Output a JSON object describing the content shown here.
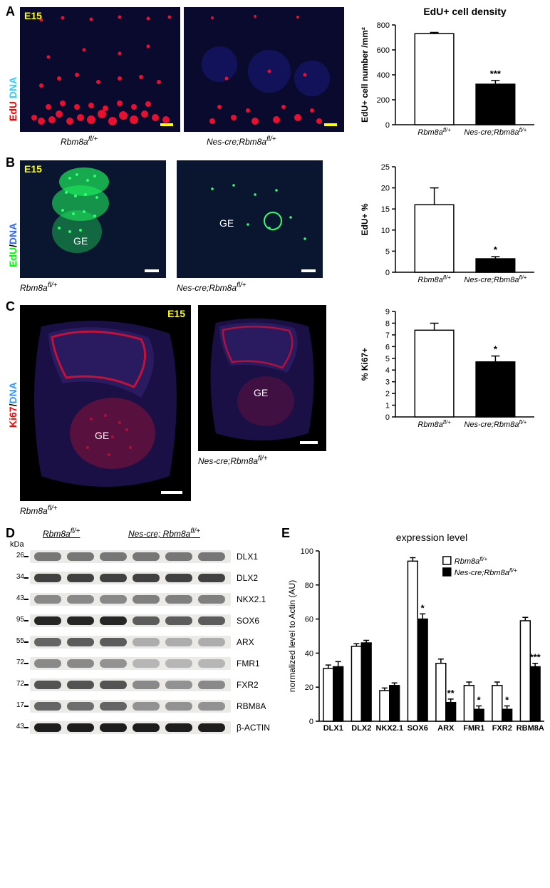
{
  "panelA": {
    "label": "A",
    "stage": "E15",
    "axisStain": {
      "red": "EdU",
      "blue": "DNA",
      "redColor": "#ff0000",
      "blueColor": "#33ccff"
    },
    "img1": {
      "genotype": "Rbm8a^{fl/+}",
      "bg": "#0a0a28",
      "scaleColor": "#ffff00"
    },
    "img2": {
      "genotype": "Nes-cre;Rbm8a^{fl/+}",
      "bg": "#0a0a28",
      "scaleColor": "#ffff00"
    },
    "chart": {
      "title": "EdU+ cell density",
      "ylabel": "EdU+ cell number /mm²",
      "ylim": [
        0,
        800
      ],
      "ytick_step": 200,
      "bars": [
        {
          "label": "Rbm8a^{fl/+}",
          "val": 730,
          "err": 10,
          "color": "#ffffff"
        },
        {
          "label": "Nes-cre;Rbm8a^{fl/+}",
          "val": 325,
          "err": 30,
          "color": "#000000",
          "sig": "***"
        }
      ]
    }
  },
  "panelB": {
    "label": "B",
    "stage": "E15",
    "axisStain": {
      "green": "EdU",
      "blue": "DNA",
      "greenColor": "#00ff00",
      "blueColor": "#3366ff"
    },
    "geLabel": "GE",
    "img1": {
      "genotype": "Rbm8a^{fl/+}",
      "scaleColor": "#ffffff"
    },
    "img2": {
      "genotype": "Nes-cre;Rbm8a^{fl/+}",
      "scaleColor": "#ffffff"
    },
    "chart": {
      "ylabel": "EdU+ %",
      "ylim": [
        0,
        25
      ],
      "ytick_step": 5,
      "bars": [
        {
          "label": "Rbm8a^{fl/+}",
          "val": 16,
          "err": 4,
          "color": "#ffffff"
        },
        {
          "label": "Nes-cre;Rbm8a^{fl/+}",
          "val": 3.2,
          "err": 0.5,
          "color": "#000000",
          "sig": "*"
        }
      ]
    }
  },
  "panelC": {
    "label": "C",
    "stage": "E15",
    "axisStain": {
      "red": "Ki67",
      "blue": "DNA",
      "redColor": "#ff0000",
      "blueColor": "#3399ff"
    },
    "geLabel": "GE",
    "img1": {
      "genotype": "Rbm8a^{fl/+}",
      "scaleColor": "#ffffff"
    },
    "img2": {
      "genotype": "Nes-cre;Rbm8a^{fl/+}",
      "scaleColor": "#ffffff"
    },
    "chart": {
      "ylabel": "% Ki67+",
      "ylim": [
        0,
        9
      ],
      "ytick_step": 1,
      "bars": [
        {
          "label": "Rbm8a^{fl/+}",
          "val": 7.4,
          "err": 0.6,
          "color": "#ffffff"
        },
        {
          "label": "Nes-cre;Rbm8a^{fl/+}",
          "val": 4.7,
          "err": 0.5,
          "color": "#000000",
          "sig": "*"
        }
      ]
    }
  },
  "panelD": {
    "label": "D",
    "kdaLabel": "kDa",
    "group1": "Rbm8a^{fl/+}",
    "group2": "Nes-cre; Rbm8a^{fl/+}",
    "rows": [
      {
        "kda": "26",
        "name": "DLX1",
        "int": [
          0.45,
          0.45,
          0.45,
          0.45,
          0.45,
          0.45
        ]
      },
      {
        "kda": "34",
        "name": "DLX2",
        "int": [
          0.75,
          0.75,
          0.75,
          0.75,
          0.75,
          0.75
        ]
      },
      {
        "kda": "43",
        "name": "NKX2.1",
        "int": [
          0.35,
          0.35,
          0.35,
          0.4,
          0.4,
          0.4
        ]
      },
      {
        "kda": "95",
        "name": "SOX6",
        "int": [
          0.9,
          0.9,
          0.9,
          0.6,
          0.6,
          0.6
        ]
      },
      {
        "kda": "55",
        "name": "ARX",
        "int": [
          0.55,
          0.6,
          0.6,
          0.15,
          0.15,
          0.15
        ]
      },
      {
        "kda": "72",
        "name": "FMR1",
        "int": [
          0.35,
          0.35,
          0.3,
          0.1,
          0.1,
          0.1
        ]
      },
      {
        "kda": "72",
        "name": "FXR2",
        "int": [
          0.65,
          0.65,
          0.65,
          0.35,
          0.3,
          0.35
        ]
      },
      {
        "kda": "17",
        "name": "RBM8A",
        "int": [
          0.55,
          0.5,
          0.55,
          0.3,
          0.3,
          0.3
        ]
      },
      {
        "kda": "43",
        "name": "β-ACTIN",
        "int": [
          0.95,
          0.95,
          0.95,
          0.95,
          0.95,
          0.95
        ]
      }
    ]
  },
  "panelE": {
    "label": "E",
    "title": "expression level",
    "ylabel": "normalized level to Actin (AU)",
    "legend": [
      {
        "label": "Rbm8a^{fl/+}",
        "fill": "#ffffff"
      },
      {
        "label": "Nes-cre;Rbm8a^{fl/+}",
        "fill": "#000000"
      }
    ],
    "ylim": [
      0,
      100
    ],
    "ytick_step": 20,
    "categories": [
      "DLX1",
      "DLX2",
      "NKX2.1",
      "SOX6",
      "ARX",
      "FMR1",
      "FXR2",
      "RBM8A"
    ],
    "series": [
      {
        "name": "Rbm8a^{fl/+}",
        "fill": "#ffffff",
        "vals": [
          31,
          44,
          18,
          94,
          34,
          21,
          21,
          59
        ],
        "errs": [
          2,
          1.5,
          1.5,
          2,
          2.5,
          2,
          2,
          2
        ]
      },
      {
        "name": "Nes-cre;Rbm8a^{fl/+}",
        "fill": "#000000",
        "vals": [
          32,
          46,
          21,
          60,
          11,
          7,
          7,
          32
        ],
        "errs": [
          3,
          1.5,
          1.5,
          3,
          2,
          2,
          2,
          2
        ],
        "sig": [
          "",
          "",
          "",
          "*",
          "**",
          "*",
          "*",
          "***"
        ]
      }
    ]
  }
}
